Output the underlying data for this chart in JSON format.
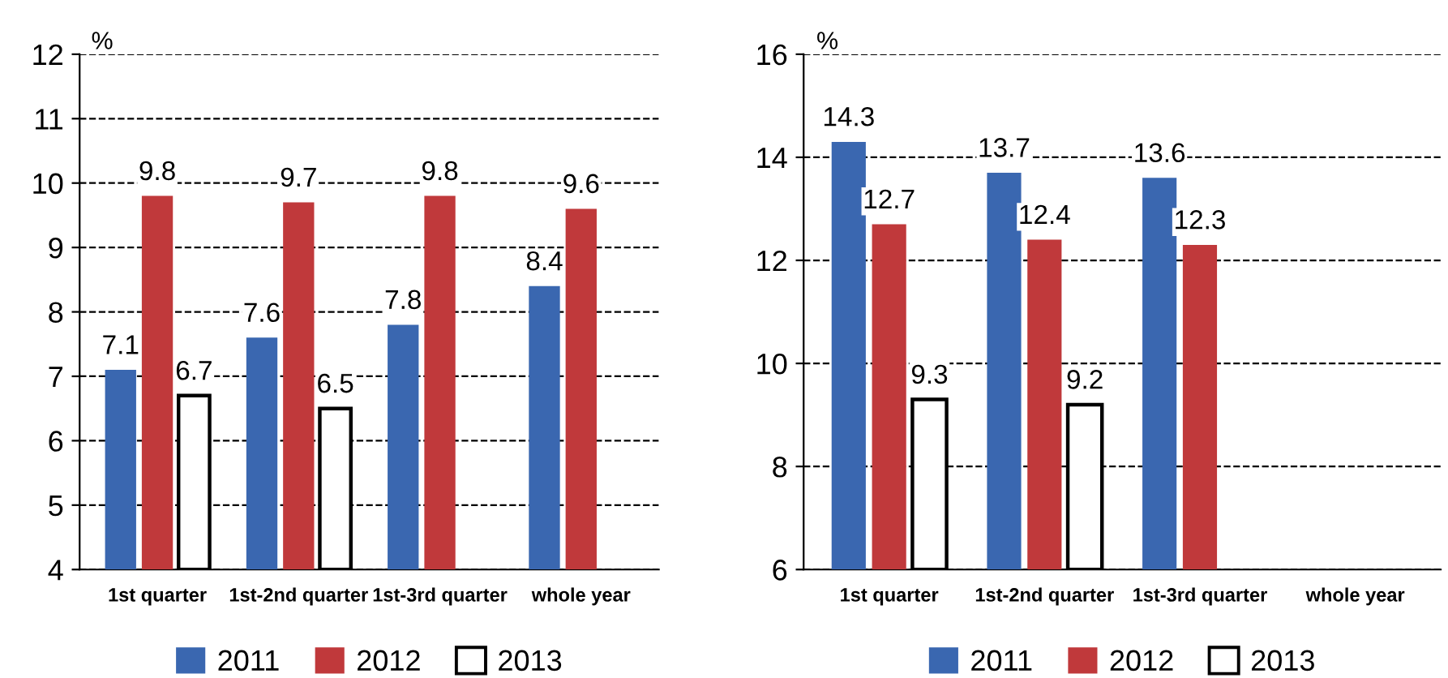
{
  "chart_data": [
    {
      "type": "bar",
      "ylabel": "%",
      "categories": [
        "1st quarter",
        "1st-2nd quarter",
        "1st-3rd quarter",
        "whole year"
      ],
      "ylim": [
        4,
        12
      ],
      "yticks": [
        4,
        5,
        6,
        7,
        8,
        9,
        10,
        11,
        12
      ],
      "grid": "y",
      "legend": "bottom",
      "data_labels": true,
      "series": [
        {
          "name": "2011",
          "color": "#3a67b0",
          "values": [
            7.1,
            7.6,
            7.8,
            8.4
          ]
        },
        {
          "name": "2012",
          "color": "#c0393b",
          "values": [
            9.8,
            9.7,
            9.8,
            9.6
          ]
        },
        {
          "name": "2013",
          "color": "#ffffff",
          "values": [
            6.7,
            6.5,
            null,
            null
          ]
        }
      ]
    },
    {
      "type": "bar",
      "ylabel": "%",
      "categories": [
        "1st quarter",
        "1st-2nd quarter",
        "1st-3rd quarter",
        "whole year"
      ],
      "ylim": [
        6,
        16
      ],
      "yticks": [
        6,
        8,
        10,
        12,
        14,
        16
      ],
      "grid": "y",
      "legend": "bottom",
      "data_labels": true,
      "series": [
        {
          "name": "2011",
          "color": "#3a67b0",
          "values": [
            14.3,
            13.7,
            13.6,
            null
          ]
        },
        {
          "name": "2012",
          "color": "#c0393b",
          "values": [
            12.7,
            12.4,
            12.3,
            null
          ]
        },
        {
          "name": "2013",
          "color": "#ffffff",
          "values": [
            9.3,
            9.2,
            null,
            null
          ]
        }
      ]
    }
  ]
}
